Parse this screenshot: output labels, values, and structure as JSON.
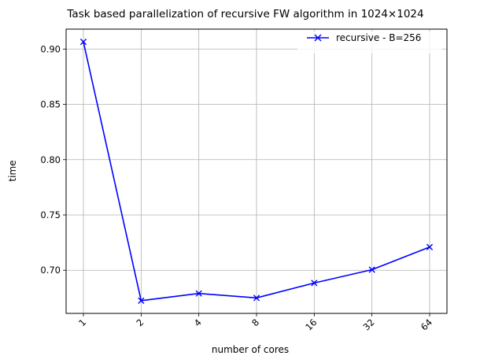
{
  "chart_data": {
    "type": "line",
    "title": "Task based parallelization of recursive FW algorithm in 1024×1024",
    "xlabel": "number of cores",
    "ylabel": "time",
    "categories": [
      "1",
      "2",
      "4",
      "8",
      "16",
      "32",
      "64"
    ],
    "series": [
      {
        "name": "recursive - B=256",
        "values": [
          0.9065,
          0.6725,
          0.679,
          0.675,
          0.6885,
          0.7005,
          0.721
        ],
        "color": "#0000ff",
        "marker": "x"
      }
    ],
    "yticks": [
      "0.70",
      "0.75",
      "0.80",
      "0.85",
      "0.90"
    ],
    "ylim": [
      0.661,
      0.918
    ],
    "grid": true,
    "legend_position": "top-right",
    "xtick_rotation": 45
  }
}
